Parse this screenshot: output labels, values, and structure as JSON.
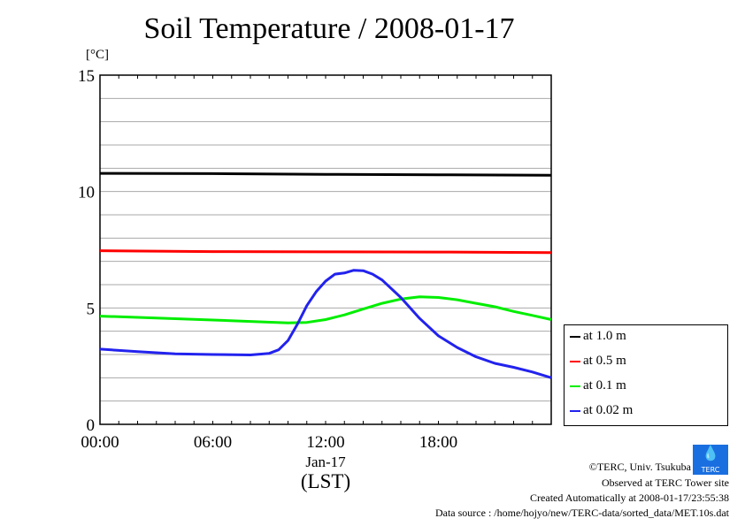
{
  "chart_data": {
    "type": "line",
    "title": "Soil Temperature / 2008-01-17",
    "ylabel": "[°C]",
    "xlabel": "(LST)",
    "x_date_label": "Jan-17",
    "ylim": [
      0,
      15
    ],
    "xlim": [
      0,
      24
    ],
    "yticks": [
      0,
      5,
      10,
      15
    ],
    "xticks": [
      {
        "v": 0,
        "label": "00:00"
      },
      {
        "v": 6,
        "label": "06:00"
      },
      {
        "v": 12,
        "label": "12:00"
      },
      {
        "v": 18,
        "label": "18:00"
      }
    ],
    "grid": true,
    "legend_position": "right-bottom outside",
    "series": [
      {
        "name": "at 1.0 m",
        "color": "#000000",
        "x": [
          0,
          6,
          12,
          18,
          24
        ],
        "y": [
          10.78,
          10.77,
          10.74,
          10.72,
          10.7
        ]
      },
      {
        "name": "at 0.5 m",
        "color": "#ff0000",
        "x": [
          0,
          6,
          12,
          18,
          24
        ],
        "y": [
          7.46,
          7.42,
          7.41,
          7.4,
          7.38
        ]
      },
      {
        "name": "at 0.1 m",
        "color": "#00ee00",
        "x": [
          0,
          3,
          6,
          8,
          10,
          11,
          12,
          13,
          14,
          15,
          16,
          17,
          18,
          19,
          20,
          21,
          22,
          23,
          24
        ],
        "y": [
          4.65,
          4.57,
          4.48,
          4.42,
          4.36,
          4.38,
          4.5,
          4.7,
          4.95,
          5.2,
          5.38,
          5.48,
          5.45,
          5.35,
          5.2,
          5.05,
          4.85,
          4.68,
          4.5
        ]
      },
      {
        "name": "at 0.02 m",
        "color": "#2222ee",
        "x": [
          0,
          2,
          4,
          6,
          8,
          9,
          9.5,
          10,
          10.5,
          11,
          11.5,
          12,
          12.5,
          13,
          13.5,
          14,
          14.5,
          15,
          16,
          17,
          18,
          19,
          20,
          21,
          22,
          23,
          24
        ],
        "y": [
          3.23,
          3.12,
          3.03,
          3.0,
          2.98,
          3.05,
          3.2,
          3.6,
          4.3,
          5.1,
          5.7,
          6.15,
          6.45,
          6.5,
          6.62,
          6.6,
          6.45,
          6.2,
          5.45,
          4.55,
          3.8,
          3.3,
          2.9,
          2.62,
          2.45,
          2.25,
          2.0
        ]
      }
    ]
  },
  "footer": {
    "copyright": "©TERC, Univ. Tsukuba",
    "site": "Observed at TERC Tower site",
    "created": "Created Automatically at 2008-01-17/23:55:38",
    "source": "Data source : /home/hojyo/new/TERC-data/sorted_data/MET.10s.dat",
    "logo_text": "TERC"
  }
}
